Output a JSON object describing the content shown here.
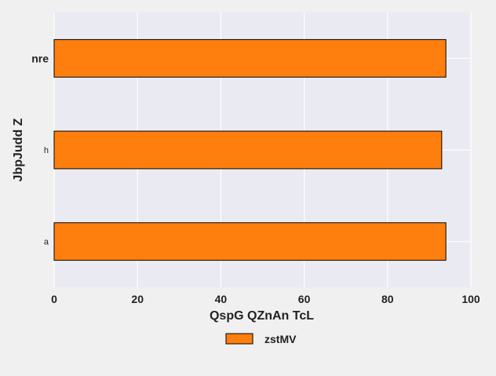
{
  "chart_data": {
    "type": "bar",
    "orientation": "horizontal",
    "categories": [
      "a",
      "h",
      "nre"
    ],
    "series": [
      {
        "name": "zstMV",
        "values": [
          94,
          93,
          94
        ]
      }
    ],
    "xlabel": "QspG QZnAn TcL",
    "ylabel": "JbpJudd Z",
    "xlim": [
      0,
      100
    ],
    "xticks": [
      0,
      20,
      40,
      60,
      80,
      100
    ],
    "grid": true,
    "legend_position": "bottom-center",
    "colors": {
      "bar_fill": "#ff7f0e",
      "bar_edge": "#000000",
      "plot_background": "#eaeaf2",
      "page_background": "#f0f0f0",
      "grid": "#ffffff",
      "text": "#222222"
    }
  }
}
